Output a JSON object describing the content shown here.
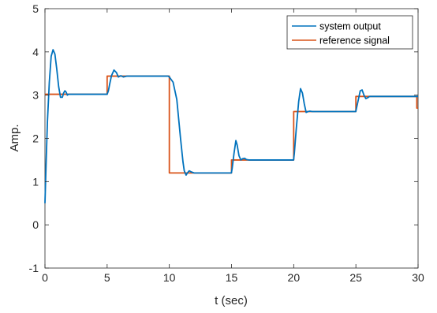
{
  "chart_data": {
    "type": "line",
    "title": "",
    "xlabel": "t (sec)",
    "ylabel": "Amp.",
    "xlim": [
      0,
      30
    ],
    "ylim": [
      -1,
      5
    ],
    "xticks": [
      0,
      5,
      10,
      15,
      20,
      25,
      30
    ],
    "yticks": [
      -1,
      0,
      1,
      2,
      3,
      4,
      5
    ],
    "grid": false,
    "legend_position": "top-right",
    "series": [
      {
        "name": "system output",
        "color": "#0072BD",
        "x": [
          0,
          0.1,
          0.2,
          0.35,
          0.5,
          0.65,
          0.8,
          0.95,
          1.1,
          1.25,
          1.4,
          1.5,
          1.6,
          1.7,
          1.8,
          1.9,
          2.1,
          2.5,
          3,
          4,
          5,
          5.1,
          5.2,
          5.35,
          5.55,
          5.75,
          5.9,
          6.1,
          6.3,
          6.6,
          7,
          8,
          9,
          9.9,
          10,
          10.3,
          10.6,
          10.9,
          11.1,
          11.2,
          11.35,
          11.45,
          11.6,
          11.8,
          12,
          12.5,
          13,
          14,
          14.99,
          15.05,
          15.2,
          15.35,
          15.45,
          15.6,
          15.75,
          15.9,
          16.05,
          16.2,
          16.4,
          16.8,
          18,
          19.99,
          20.05,
          20.2,
          20.4,
          20.55,
          20.7,
          20.85,
          21,
          21.15,
          21.3,
          21.5,
          22,
          23,
          24.99,
          25.05,
          25.2,
          25.35,
          25.5,
          25.65,
          25.8,
          25.95,
          26.1,
          26.3,
          26.6,
          27.5,
          29.9,
          30
        ],
        "values": [
          0.5,
          1.5,
          2.4,
          3.3,
          3.9,
          4.05,
          3.95,
          3.6,
          3.2,
          2.95,
          2.95,
          3.05,
          3.1,
          3.07,
          3.0,
          3.02,
          3.02,
          3.02,
          3.02,
          3.02,
          3.02,
          3.1,
          3.25,
          3.45,
          3.58,
          3.52,
          3.42,
          3.45,
          3.42,
          3.44,
          3.44,
          3.44,
          3.44,
          3.44,
          3.42,
          3.3,
          2.9,
          2.0,
          1.45,
          1.25,
          1.15,
          1.2,
          1.25,
          1.22,
          1.2,
          1.2,
          1.2,
          1.2,
          1.2,
          1.3,
          1.65,
          1.95,
          1.85,
          1.6,
          1.5,
          1.53,
          1.54,
          1.51,
          1.5,
          1.5,
          1.5,
          1.5,
          1.65,
          2.2,
          2.85,
          3.15,
          3.05,
          2.8,
          2.6,
          2.62,
          2.63,
          2.62,
          2.62,
          2.62,
          2.62,
          2.7,
          2.9,
          3.1,
          3.12,
          3.0,
          2.92,
          2.94,
          2.97,
          2.97,
          2.97,
          2.97,
          2.97,
          2.97
        ]
      },
      {
        "name": "reference signal",
        "color": "#D95319",
        "x": [
          0,
          5,
          5,
          10,
          10,
          15,
          15,
          20,
          20,
          25,
          25,
          29.9,
          29.9,
          30
        ],
        "values": [
          3.02,
          3.02,
          3.44,
          3.44,
          1.2,
          1.2,
          1.5,
          1.5,
          2.62,
          2.62,
          2.97,
          2.97,
          2.7,
          2.7
        ]
      }
    ]
  }
}
